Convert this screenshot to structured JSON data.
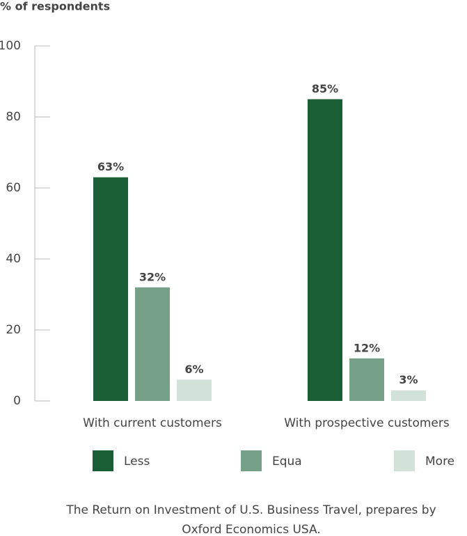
{
  "chart_data": {
    "type": "bar",
    "y_label": "% of respondents",
    "categories": [
      "With current customers",
      "With prospective customers"
    ],
    "series": [
      {
        "name": "Less",
        "color": "#1a5e36",
        "values": [
          63,
          85
        ],
        "value_labels": [
          "63%",
          "85%"
        ]
      },
      {
        "name": "Equa",
        "color": "#76a088",
        "values": [
          32,
          12
        ],
        "value_labels": [
          "32%",
          "12%"
        ]
      },
      {
        "name": "More",
        "color": "#d3e2d9",
        "values": [
          6,
          3
        ],
        "value_labels": [
          "6%",
          "3%"
        ]
      }
    ],
    "ylim": [
      0,
      100
    ],
    "yticks": [
      0,
      20,
      40,
      60,
      80,
      100
    ],
    "source": [
      "The Return on Investment of U.S. Business Travel, prepares by",
      "Oxford Economics USA."
    ]
  }
}
